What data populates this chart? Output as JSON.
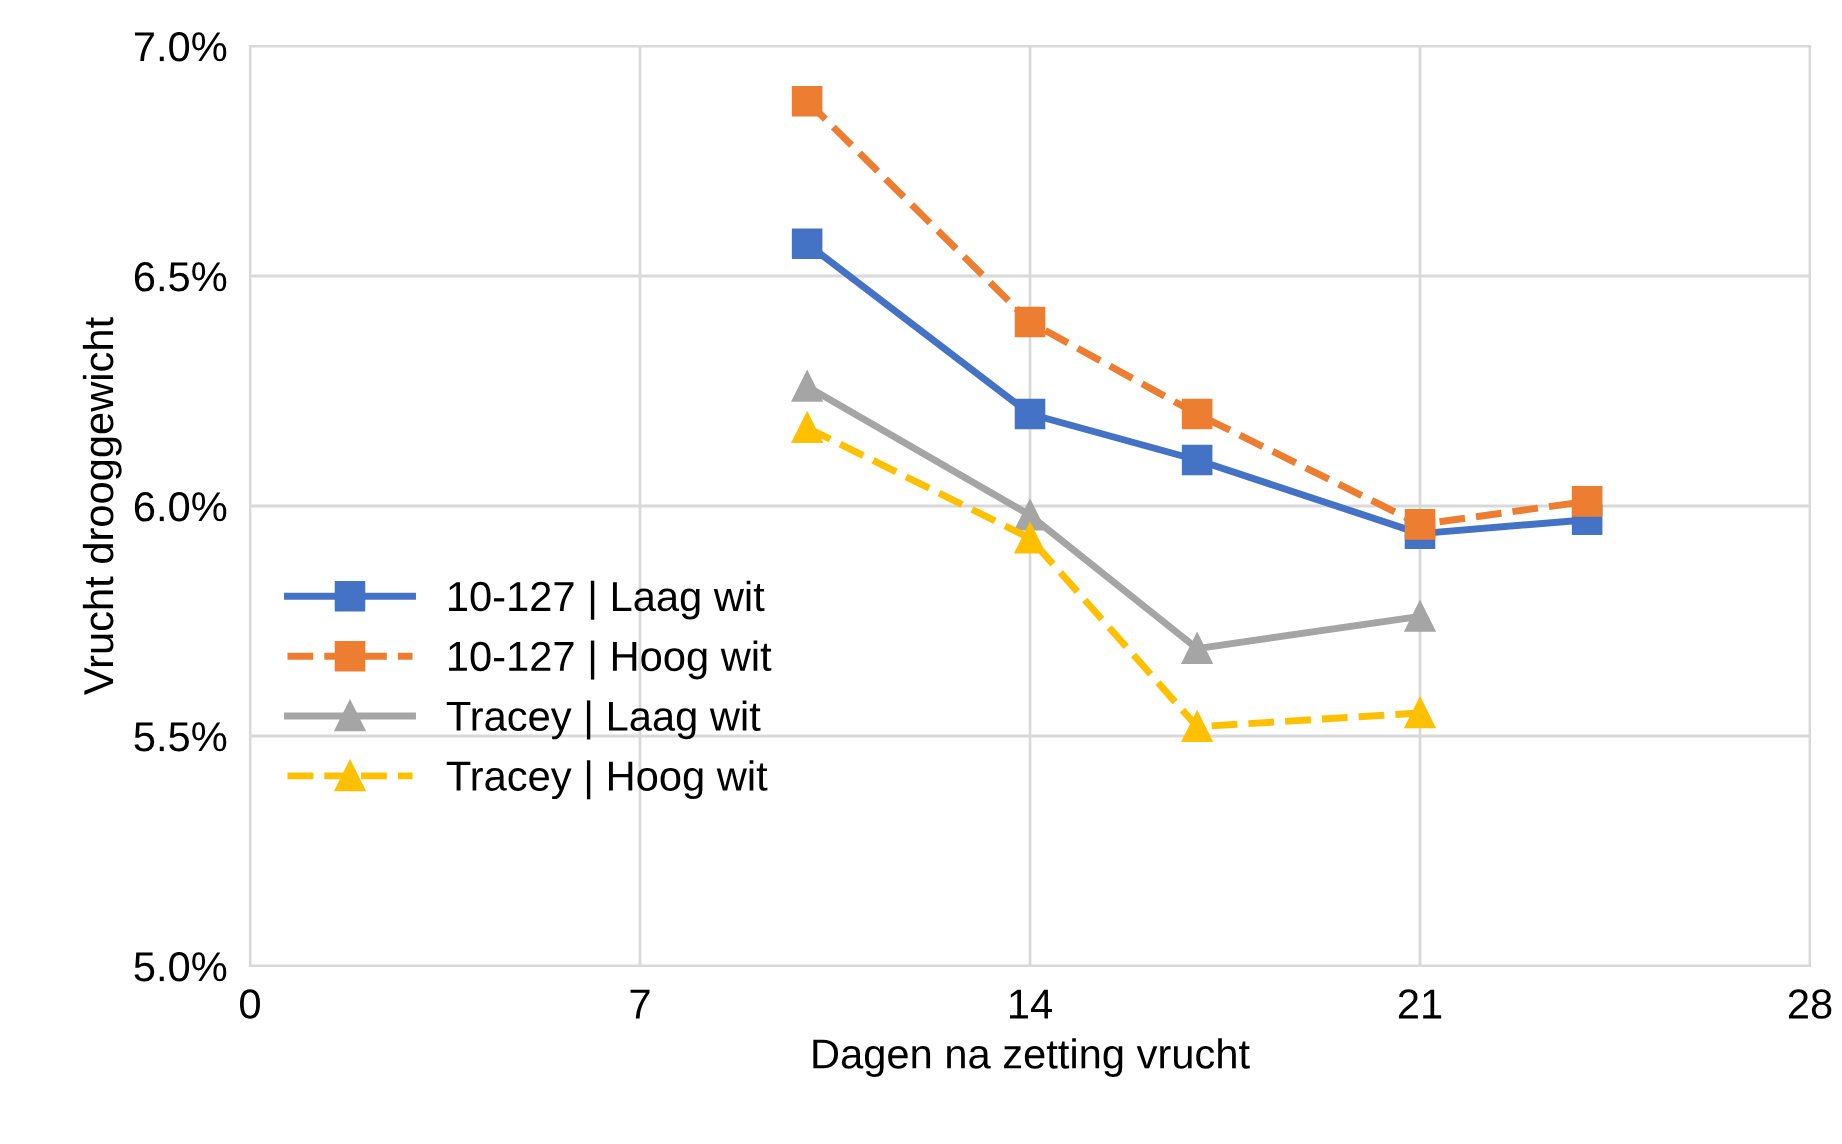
{
  "chart_data": {
    "type": "line",
    "xlabel": "Dagen na zetting vrucht",
    "ylabel": "Vrucht drooggewicht",
    "xlim": [
      0,
      28
    ],
    "xticks": [
      0,
      7,
      14,
      21,
      28
    ],
    "ylim": [
      5.0,
      7.0
    ],
    "yticks": [
      {
        "value": 5.0,
        "label": "5.0%"
      },
      {
        "value": 5.5,
        "label": "5.5%"
      },
      {
        "value": 6.0,
        "label": "6.0%"
      },
      {
        "value": 6.5,
        "label": "6.5%"
      },
      {
        "value": 7.0,
        "label": "7.0%"
      }
    ],
    "grid": true,
    "legend": "left",
    "series": [
      {
        "name": "10-127 | Laag wit",
        "color": "#4472c4",
        "marker": "square",
        "line_style": "solid",
        "x": [
          10,
          14,
          17,
          21,
          24
        ],
        "values": [
          6.57,
          6.2,
          6.1,
          5.94,
          5.97
        ]
      },
      {
        "name": "10-127 | Hoog wit",
        "color": "#ed7d31",
        "marker": "square",
        "line_style": "dashed",
        "x": [
          10,
          14,
          17,
          21,
          24
        ],
        "values": [
          6.88,
          6.4,
          6.2,
          5.96,
          6.01
        ]
      },
      {
        "name": "Tracey | Laag wit",
        "color": "#a5a5a5",
        "marker": "triangle",
        "line_style": "solid",
        "x": [
          10,
          14,
          17,
          21
        ],
        "values": [
          6.26,
          5.98,
          5.69,
          5.76
        ]
      },
      {
        "name": "Tracey | Hoog wit",
        "color": "#ffc000",
        "marker": "triangle",
        "line_style": "dashed",
        "x": [
          10,
          14,
          17,
          21
        ],
        "values": [
          6.17,
          5.93,
          5.52,
          5.55
        ]
      }
    ]
  }
}
